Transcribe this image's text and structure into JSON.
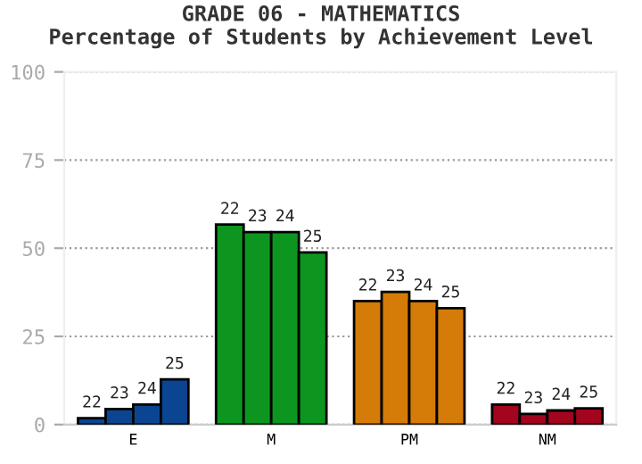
{
  "chart_data": {
    "type": "bar",
    "title": "GRADE 06 - MATHEMATICS",
    "subtitle": "Percentage of Students by Achievement Level",
    "categories": [
      "E",
      "M",
      "PM",
      "NM"
    ],
    "series": [
      {
        "name": "22",
        "colors": [
          "#0b4591",
          "#0c9620",
          "#d57b07",
          "#a2051d"
        ],
        "values": [
          1.8,
          56.7,
          35,
          5.7
        ]
      },
      {
        "name": "23",
        "colors": [
          "#0b4591",
          "#0c9620",
          "#d57b07",
          "#a2051d"
        ],
        "values": [
          4.4,
          54.6,
          37.6,
          3
        ]
      },
      {
        "name": "24",
        "colors": [
          "#0b4591",
          "#0c9620",
          "#d57b07",
          "#a2051d"
        ],
        "values": [
          5.7,
          54.6,
          35,
          4
        ]
      },
      {
        "name": "25",
        "colors": [
          "#0b4591",
          "#0c9620",
          "#d57b07",
          "#a2051d"
        ],
        "values": [
          12.8,
          48.8,
          33,
          4.6
        ]
      }
    ],
    "ylim": [
      0,
      100
    ],
    "yticks": [
      0,
      25,
      50,
      75,
      100
    ],
    "grid": "y",
    "legend": false
  }
}
